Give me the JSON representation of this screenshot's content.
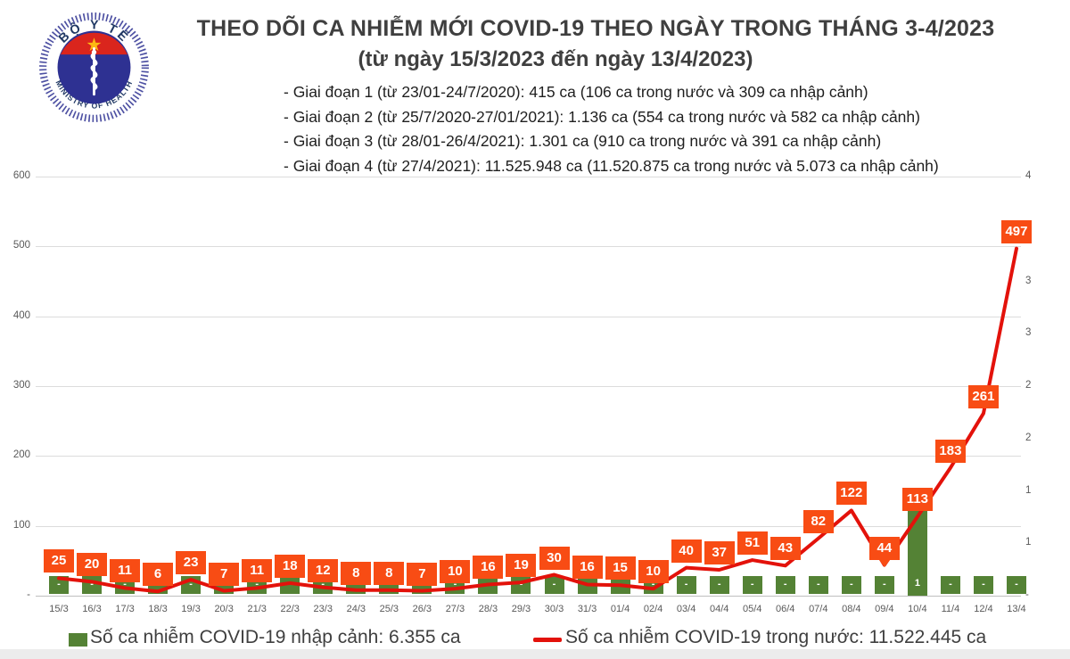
{
  "logo": {
    "top_text": "BỘ Y TẾ",
    "bottom_text": "MINISTRY OF HEALTH",
    "colors": {
      "ring_text": "#203864",
      "disc_blue": "#2e3192",
      "cap_red": "#da251d",
      "star_yellow": "#fdb913"
    }
  },
  "header": {
    "title": "THEO DÕI CA NHIỄM MỚI COVID-19 THEO NGÀY TRONG THÁNG 3-4/2023",
    "subtitle": "(từ ngày 15/3/2023 đến ngày 13/4/2023)"
  },
  "phases": [
    "- Giai đoạn 1 (từ 23/01-24/7/2020): 415 ca (106 ca trong nước và 309 ca nhập cảnh)",
    "- Giai đoạn 2 (từ 25/7/2020-27/01/2021): 1.136 ca (554 ca trong nước và 582 ca nhập cảnh)",
    "- Giai đoạn 3 (từ 28/01-26/4/2021): 1.301 ca (910 ca trong nước và 391 ca nhập cảnh)",
    "- Giai đoạn 4 (từ 27/4/2021): 11.525.948 ca (11.520.875 ca trong nước và 5.073 ca nhập cảnh)"
  ],
  "chart_data": {
    "type": "combo",
    "categories": [
      "15/3",
      "16/3",
      "17/3",
      "18/3",
      "19/3",
      "20/3",
      "21/3",
      "22/3",
      "23/3",
      "24/3",
      "25/3",
      "26/3",
      "27/3",
      "28/3",
      "29/3",
      "30/3",
      "31/3",
      "01/4",
      "02/4",
      "03/4",
      "04/4",
      "05/4",
      "06/4",
      "07/4",
      "08/4",
      "09/4",
      "10/4",
      "11/4",
      "12/4",
      "13/4"
    ],
    "series": [
      {
        "name": "Số ca nhiễm COVID-19 trong nước",
        "type": "line",
        "axis": "left",
        "color": "#e3120b",
        "label_box_color": "#f84c14",
        "values": [
          25,
          20,
          11,
          6,
          23,
          7,
          11,
          18,
          12,
          8,
          8,
          7,
          10,
          16,
          19,
          30,
          16,
          15,
          10,
          40,
          37,
          51,
          43,
          82,
          122,
          44,
          113,
          183,
          261,
          497
        ],
        "callout_index": 25
      },
      {
        "name": "Số ca nhiễm COVID-19 nhập cảnh",
        "type": "bar",
        "axis": "right",
        "color": "#548235",
        "values": [
          0,
          0,
          0,
          0,
          0,
          0,
          0,
          0,
          0,
          0,
          0,
          0,
          0,
          0,
          0,
          0,
          0,
          0,
          0,
          0,
          0,
          0,
          0,
          0,
          0,
          0,
          1,
          0,
          0,
          0
        ],
        "labels": [
          "-",
          "-",
          "-",
          "-",
          "-",
          "-",
          "-",
          "-",
          "-",
          "-",
          "-",
          "-",
          "-",
          "-",
          "-",
          "-",
          "-",
          "-",
          "-",
          "-",
          "-",
          "-",
          "-",
          "-",
          "-",
          "-",
          "1",
          "-",
          "-",
          "-"
        ]
      }
    ],
    "left_axis": {
      "max": 600,
      "ticks": [
        "600",
        "500",
        "400",
        "300",
        "200",
        "100",
        "-"
      ]
    },
    "right_axis": {
      "max": 4,
      "ticks": [
        "4",
        "4",
        "3",
        "3",
        "2",
        "2",
        "1",
        "1",
        "-"
      ]
    },
    "grid": true,
    "legend_position": "bottom"
  },
  "legend": [
    {
      "marker": "square",
      "color": "#548235",
      "label": "Số ca nhiễm COVID-19 nhập cảnh: 6.355 ca"
    },
    {
      "marker": "line",
      "color": "#e3120b",
      "label": "Số ca nhiễm COVID-19 trong nước: 11.522.445 ca"
    }
  ]
}
